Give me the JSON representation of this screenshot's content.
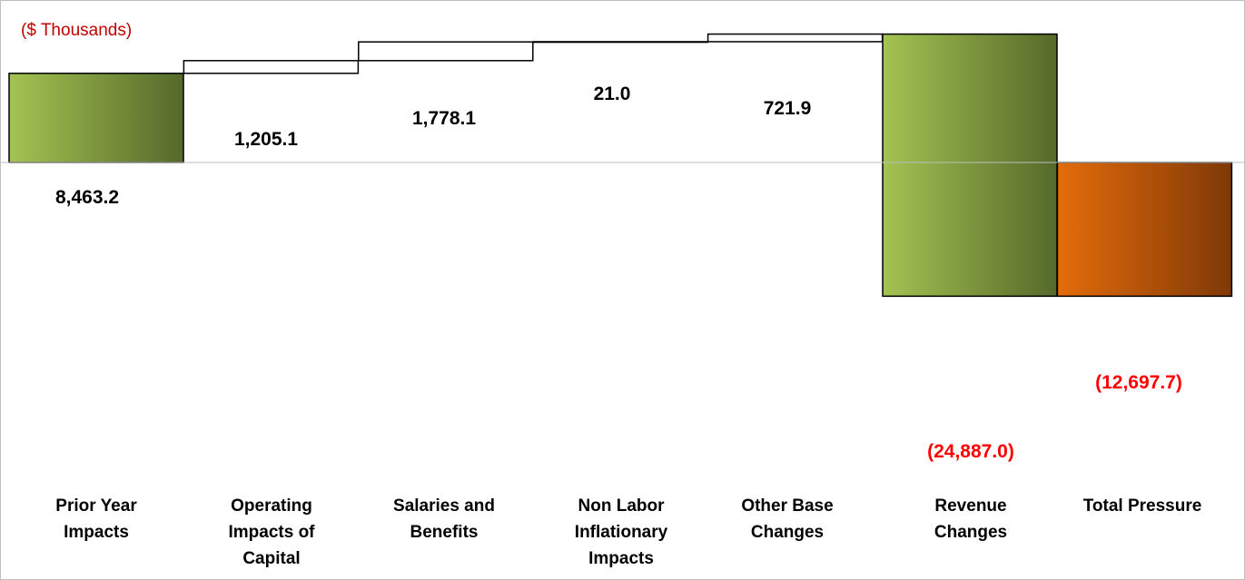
{
  "chart_data": {
    "type": "bar",
    "subtype": "waterfall",
    "unit_label": "($ Thousands)",
    "categories": [
      "Prior Year Impacts",
      "Operating Impacts of Capital",
      "Salaries and Benefits",
      "Non Labor Inflationary Impacts",
      "Other Base Changes",
      "Revenue Changes",
      "Total Pressure"
    ],
    "values": [
      8463.2,
      1205.1,
      1778.1,
      21.0,
      721.9,
      -24887.0,
      -12697.7
    ],
    "value_labels": [
      "8,463.2",
      "1,205.1",
      "1,778.1",
      "21.0",
      "721.9",
      "(24,887.0)",
      "(12,697.7)"
    ],
    "bar_styles": [
      "green",
      "outline",
      "outline",
      "outline",
      "outline",
      "green",
      "orange"
    ],
    "ylim": [
      -25000,
      8600
    ],
    "grid": false,
    "legend": "none",
    "colors": {
      "green_light": "#a4c352",
      "green_dark": "#55692a",
      "orange_light": "#e46c0a",
      "orange_dark": "#7f3907",
      "outline": "#000000",
      "negative_label": "#ff0000",
      "unit_label": "#c00000"
    }
  }
}
